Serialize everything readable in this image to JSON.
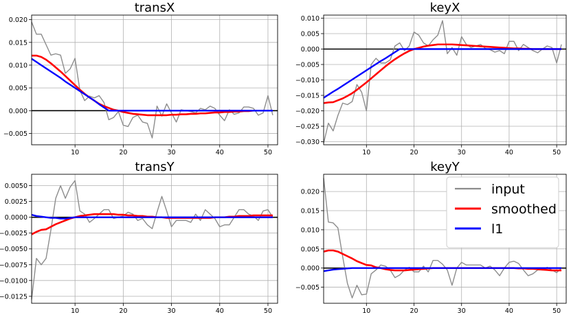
{
  "figure": {
    "legend_position": "top-right (in keyY panel)"
  },
  "legend": {
    "entries": [
      {
        "label": "input",
        "color": "#8c8c8c"
      },
      {
        "label": "smoothed",
        "color": "#ff0000"
      },
      {
        "label": "l1",
        "color": "#0000ff"
      }
    ]
  },
  "series_colors": {
    "input": "#8c8c8c",
    "smoothed": "#ff0000",
    "l1": "#0000ff",
    "zero_line": "#000000"
  },
  "chart_data": [
    {
      "type": "line",
      "title": "transX",
      "xlim": [
        1,
        52
      ],
      "ylim": [
        -0.0075,
        0.021
      ],
      "xticks": [
        10,
        20,
        30,
        40,
        50
      ],
      "yticks": [
        -0.005,
        0.0,
        0.005,
        0.01,
        0.015,
        0.02
      ],
      "ytick_labels": [
        "−0.005",
        "0.000",
        "0.005",
        "0.010",
        "0.015",
        "0.020"
      ],
      "grid": true,
      "zero_line": true,
      "x": [
        1,
        2,
        3,
        4,
        5,
        6,
        7,
        8,
        9,
        10,
        11,
        12,
        13,
        14,
        15,
        16,
        17,
        18,
        19,
        20,
        21,
        22,
        23,
        24,
        25,
        26,
        27,
        28,
        29,
        30,
        31,
        32,
        33,
        34,
        35,
        36,
        37,
        38,
        39,
        40,
        41,
        42,
        43,
        44,
        45,
        46,
        47,
        48,
        49,
        50,
        51
      ],
      "series": [
        {
          "name": "input",
          "values": [
            0.0195,
            0.0168,
            0.0168,
            0.0145,
            0.0122,
            0.0125,
            0.0122,
            0.0082,
            0.0092,
            0.0115,
            0.0045,
            0.0022,
            0.0032,
            0.0028,
            0.0033,
            0.0018,
            -0.002,
            -0.0015,
            -0.0002,
            -0.0032,
            -0.0035,
            -0.0015,
            -0.001,
            -0.0025,
            -0.0028,
            -0.006,
            0.001,
            -0.0012,
            0.0015,
            -0.0005,
            -0.0025,
            0.0002,
            0.0,
            -0.0002,
            -0.0005,
            0.0005,
            0.0002,
            0.001,
            0.0005,
            -0.001,
            -0.0022,
            0.0002,
            -0.0008,
            -0.0005,
            0.0008,
            0.0008,
            0.0005,
            -0.001,
            -0.0005,
            0.0033,
            -0.001
          ]
        },
        {
          "name": "smoothed",
          "values": [
            0.0121,
            0.0121,
            0.0118,
            0.0112,
            0.0104,
            0.0095,
            0.0086,
            0.0076,
            0.0066,
            0.0056,
            0.0046,
            0.0037,
            0.0029,
            0.0022,
            0.0015,
            0.001,
            0.0006,
            0.0002,
            0.0,
            -0.0003,
            -0.0005,
            -0.0007,
            -0.0008,
            -0.0009,
            -0.001,
            -0.001,
            -0.001,
            -0.001,
            -0.001,
            -0.0009,
            -0.0009,
            -0.0008,
            -0.0008,
            -0.0007,
            -0.0007,
            -0.0006,
            -0.0006,
            -0.0005,
            -0.0004,
            -0.0004,
            -0.0003,
            -0.0003,
            -0.0002,
            -0.0002,
            -0.0001,
            -0.0001,
            0.0,
            0.0,
            0.0,
            0.0,
            0.0
          ]
        },
        {
          "name": "l1",
          "values": [
            0.0114,
            0.0107,
            0.01,
            0.0093,
            0.0086,
            0.0079,
            0.0072,
            0.0064,
            0.0057,
            0.005,
            0.0043,
            0.0036,
            0.0029,
            0.0022,
            0.0014,
            0.0007,
            0.0,
            0.0,
            0.0,
            0.0,
            0.0,
            0.0,
            0.0,
            0.0,
            0.0,
            0.0,
            0.0,
            0.0,
            0.0,
            0.0,
            0.0,
            0.0,
            0.0,
            0.0,
            0.0,
            0.0,
            0.0,
            0.0,
            0.0,
            0.0,
            0.0,
            0.0,
            0.0,
            0.0,
            0.0,
            0.0,
            0.0,
            0.0,
            0.0,
            0.0,
            0.0
          ]
        }
      ]
    },
    {
      "type": "line",
      "title": "keyX",
      "xlim": [
        1,
        52
      ],
      "ylim": [
        -0.031,
        0.011
      ],
      "xticks": [
        10,
        20,
        30,
        40,
        50
      ],
      "yticks": [
        -0.03,
        -0.025,
        -0.02,
        -0.015,
        -0.01,
        -0.005,
        0.0,
        0.005,
        0.01
      ],
      "ytick_labels": [
        "−0.030",
        "−0.025",
        "−0.020",
        "−0.015",
        "−0.010",
        "−0.005",
        "0.000",
        "0.005",
        "0.010"
      ],
      "grid": true,
      "zero_line": true,
      "x": [
        1,
        2,
        3,
        4,
        5,
        6,
        7,
        8,
        9,
        10,
        11,
        12,
        13,
        14,
        15,
        16,
        17,
        18,
        19,
        20,
        21,
        22,
        23,
        24,
        25,
        26,
        27,
        28,
        29,
        30,
        31,
        32,
        33,
        34,
        35,
        36,
        37,
        38,
        39,
        40,
        41,
        42,
        43,
        44,
        45,
        46,
        47,
        48,
        49,
        50,
        51
      ],
      "series": [
        {
          "name": "input",
          "values": [
            -0.0305,
            -0.024,
            -0.0265,
            -0.0215,
            -0.0175,
            -0.018,
            -0.017,
            -0.0115,
            -0.014,
            -0.02,
            -0.005,
            -0.003,
            -0.0045,
            -0.0045,
            -0.0035,
            0.001,
            0.002,
            -0.0005,
            0.001,
            0.0055,
            0.0045,
            0.002,
            0.001,
            0.003,
            0.0045,
            0.0092,
            -0.0015,
            0.0005,
            -0.002,
            0.004,
            0.0015,
            0.0005,
            0.001,
            0.0015,
            0.0002,
            -0.0002,
            -0.001,
            -0.0005,
            -0.0015,
            0.0025,
            0.0025,
            -0.0005,
            0.0015,
            0.0005,
            -0.0005,
            -0.0012,
            0.0,
            0.001,
            0.0005,
            -0.0045,
            0.0015
          ]
        },
        {
          "name": "smoothed",
          "values": [
            -0.0175,
            -0.0173,
            -0.0172,
            -0.0166,
            -0.016,
            -0.0152,
            -0.0143,
            -0.0132,
            -0.012,
            -0.0108,
            -0.0095,
            -0.0082,
            -0.0069,
            -0.0056,
            -0.0044,
            -0.0033,
            -0.0023,
            -0.0014,
            -0.0006,
            0.0,
            0.0004,
            0.0008,
            0.0011,
            0.0013,
            0.0015,
            0.0015,
            0.0015,
            0.0015,
            0.0014,
            0.0013,
            0.0012,
            0.0011,
            0.001,
            0.0009,
            0.0008,
            0.0007,
            0.0006,
            0.0005,
            0.0004,
            0.0003,
            0.0002,
            0.0002,
            0.0001,
            0.0001,
            0.0,
            0.0,
            0.0,
            0.0,
            0.0,
            0.0,
            0.0
          ]
        },
        {
          "name": "l1",
          "values": [
            -0.0158,
            -0.0148,
            -0.0138,
            -0.0129,
            -0.0119,
            -0.0109,
            -0.0099,
            -0.0089,
            -0.0079,
            -0.0069,
            -0.0059,
            -0.0049,
            -0.0039,
            -0.003,
            -0.002,
            -0.001,
            0.0,
            0.0,
            0.0,
            0.0,
            0.0,
            0.0,
            0.0,
            0.0,
            0.0,
            0.0,
            0.0,
            0.0,
            0.0,
            0.0,
            0.0,
            0.0,
            0.0,
            0.0,
            0.0,
            0.0,
            0.0,
            0.0,
            0.0,
            0.0,
            0.0,
            0.0,
            0.0,
            0.0,
            0.0,
            0.0,
            0.0,
            0.0,
            0.0,
            0.0,
            0.0
          ]
        }
      ]
    },
    {
      "type": "line",
      "title": "transY",
      "xlim": [
        1,
        52
      ],
      "ylim": [
        -0.0136,
        0.0068
      ],
      "xticks": [
        10,
        20,
        30,
        40,
        50
      ],
      "yticks": [
        -0.0125,
        -0.01,
        -0.0075,
        -0.005,
        -0.0025,
        0.0,
        0.0025,
        0.005
      ],
      "ytick_labels": [
        "−0.0125",
        "−0.0100",
        "−0.0075",
        "−0.0050",
        "−0.0025",
        "0.0000",
        "0.0025",
        "0.0050"
      ],
      "grid": true,
      "zero_line": true,
      "x": [
        1,
        2,
        3,
        4,
        5,
        6,
        7,
        8,
        9,
        10,
        11,
        12,
        13,
        14,
        15,
        16,
        17,
        18,
        19,
        20,
        21,
        22,
        23,
        24,
        25,
        26,
        27,
        28,
        29,
        30,
        31,
        32,
        33,
        34,
        35,
        36,
        37,
        38,
        39,
        40,
        41,
        42,
        43,
        44,
        45,
        46,
        47,
        48,
        49,
        50,
        51
      ],
      "series": [
        {
          "name": "input",
          "values": [
            -0.013,
            -0.0065,
            -0.0075,
            -0.0065,
            -0.002,
            0.003,
            0.005,
            0.003,
            0.0048,
            0.0058,
            0.001,
            0.0005,
            -0.0008,
            -0.0002,
            0.0005,
            0.0012,
            0.0012,
            -0.0002,
            0.0,
            0.0002,
            0.0008,
            0.0005,
            -0.0005,
            -0.0002,
            -0.0012,
            -0.0018,
            0.0008,
            0.0033,
            0.001,
            -0.0015,
            -0.0005,
            -0.0005,
            -0.0005,
            -0.0008,
            0.0005,
            -0.0005,
            0.0012,
            0.0005,
            -0.0002,
            -0.0015,
            -0.0012,
            -0.0012,
            0.0,
            0.0012,
            0.0012,
            0.0005,
            0.0002,
            -0.0005,
            0.001,
            0.0012,
            0.0
          ]
        },
        {
          "name": "smoothed",
          "values": [
            -0.0027,
            -0.0023,
            -0.002,
            -0.0019,
            -0.0015,
            -0.0011,
            -0.0008,
            -0.0005,
            -0.0002,
            0.0,
            0.0002,
            0.0003,
            0.0004,
            0.0005,
            0.0005,
            0.0005,
            0.0005,
            0.0005,
            0.0004,
            0.0004,
            0.0003,
            0.0003,
            0.0002,
            0.0002,
            0.0001,
            0.0001,
            0.0,
            0.0,
            -0.0001,
            -0.0001,
            -0.0001,
            -0.0001,
            -0.0001,
            -0.0001,
            -0.0001,
            -0.0001,
            -0.0001,
            -0.0001,
            0.0,
            0.0,
            0.0,
            0.0001,
            0.0001,
            0.0002,
            0.0002,
            0.0002,
            0.0003,
            0.0003,
            0.0003,
            0.0003,
            0.0003
          ]
        },
        {
          "name": "l1",
          "values": [
            0.0004,
            0.0002,
            0.0001,
            0.0,
            -0.0001,
            -0.0001,
            -0.0002,
            -0.0002,
            -0.0001,
            0.0,
            0.0,
            0.0,
            0.0,
            0.0,
            0.0,
            0.0,
            0.0,
            0.0,
            0.0,
            0.0,
            0.0,
            0.0,
            0.0,
            0.0,
            0.0,
            0.0,
            0.0,
            0.0,
            0.0,
            0.0,
            0.0,
            0.0,
            0.0,
            0.0,
            0.0,
            0.0,
            0.0,
            0.0,
            0.0,
            0.0,
            0.0,
            0.0,
            0.0,
            0.0,
            0.0,
            0.0,
            0.0,
            0.0,
            0.0,
            0.0,
            0.0
          ]
        }
      ]
    },
    {
      "type": "line",
      "title": "keyY",
      "xlim": [
        1,
        52
      ],
      "ylim": [
        -0.0092,
        0.0245
      ],
      "xticks": [
        10,
        20,
        30,
        40,
        50
      ],
      "yticks": [
        -0.005,
        0.0,
        0.005,
        0.01,
        0.015,
        0.02
      ],
      "ytick_labels": [
        "−0.005",
        "0.000",
        "0.005",
        "0.010",
        "0.015",
        "0.020"
      ],
      "grid": true,
      "zero_line": true,
      "x": [
        1,
        2,
        3,
        4,
        5,
        6,
        7,
        8,
        9,
        10,
        11,
        12,
        13,
        14,
        15,
        16,
        17,
        18,
        19,
        20,
        21,
        22,
        23,
        24,
        25,
        26,
        27,
        28,
        29,
        30,
        31,
        32,
        33,
        34,
        35,
        36,
        37,
        38,
        39,
        40,
        41,
        42,
        43,
        44,
        45,
        46,
        47,
        48,
        49,
        50,
        51
      ],
      "series": [
        {
          "name": "input",
          "values": [
            0.0235,
            0.012,
            0.0118,
            0.0105,
            0.003,
            -0.004,
            -0.0078,
            -0.0045,
            -0.007,
            -0.0068,
            -0.0015,
            -0.0005,
            0.0008,
            0.0005,
            -0.0005,
            -0.0025,
            -0.0018,
            -0.0005,
            0.0002,
            -0.001,
            -0.001,
            0.0005,
            -0.001,
            0.002,
            0.002,
            0.001,
            -0.0005,
            -0.0045,
            0.0,
            0.0015,
            0.0008,
            0.0008,
            0.0008,
            0.0008,
            0.0,
            0.0005,
            -0.0005,
            -0.002,
            0.0,
            0.0015,
            0.0018,
            0.0012,
            -0.0005,
            -0.002,
            -0.0015,
            -0.0005,
            -0.0005,
            0.0002,
            -0.0005,
            -0.0012,
            0.0
          ]
        },
        {
          "name": "smoothed",
          "values": [
            0.0043,
            0.0046,
            0.0046,
            0.0043,
            0.0037,
            0.0031,
            0.0025,
            0.0018,
            0.0013,
            0.0008,
            0.0007,
            0.0002,
            0.0,
            -0.0003,
            -0.0005,
            -0.0006,
            -0.0006,
            -0.0006,
            -0.0005,
            -0.0004,
            -0.0003,
            -0.0002,
            -0.0001,
            0.0,
            0.0,
            0.0,
            0.0,
            0.0,
            0.0,
            0.0,
            0.0,
            0.0,
            0.0,
            0.0,
            0.0,
            0.0,
            0.0,
            0.0,
            0.0,
            0.0,
            0.0,
            -0.0001,
            -0.0001,
            -0.0002,
            -0.0002,
            -0.0003,
            -0.0004,
            -0.0005,
            -0.0006,
            -0.0006,
            -0.0006
          ]
        },
        {
          "name": "l1",
          "values": [
            -0.0008,
            -0.0006,
            -0.0004,
            -0.0003,
            -0.0002,
            -0.0001,
            0.0,
            0.0,
            0.0,
            0.0,
            0.0,
            0.0,
            0.0,
            0.0,
            0.0,
            0.0,
            0.0,
            0.0,
            0.0,
            0.0,
            0.0,
            0.0,
            0.0,
            0.0,
            0.0,
            0.0,
            0.0,
            0.0,
            0.0,
            0.0,
            0.0,
            0.0,
            0.0,
            0.0,
            0.0,
            0.0,
            0.0,
            0.0,
            0.0,
            0.0,
            0.0,
            0.0,
            0.0,
            0.0,
            0.0,
            0.0,
            0.0,
            0.0,
            0.0,
            0.0,
            0.0
          ]
        }
      ]
    }
  ]
}
